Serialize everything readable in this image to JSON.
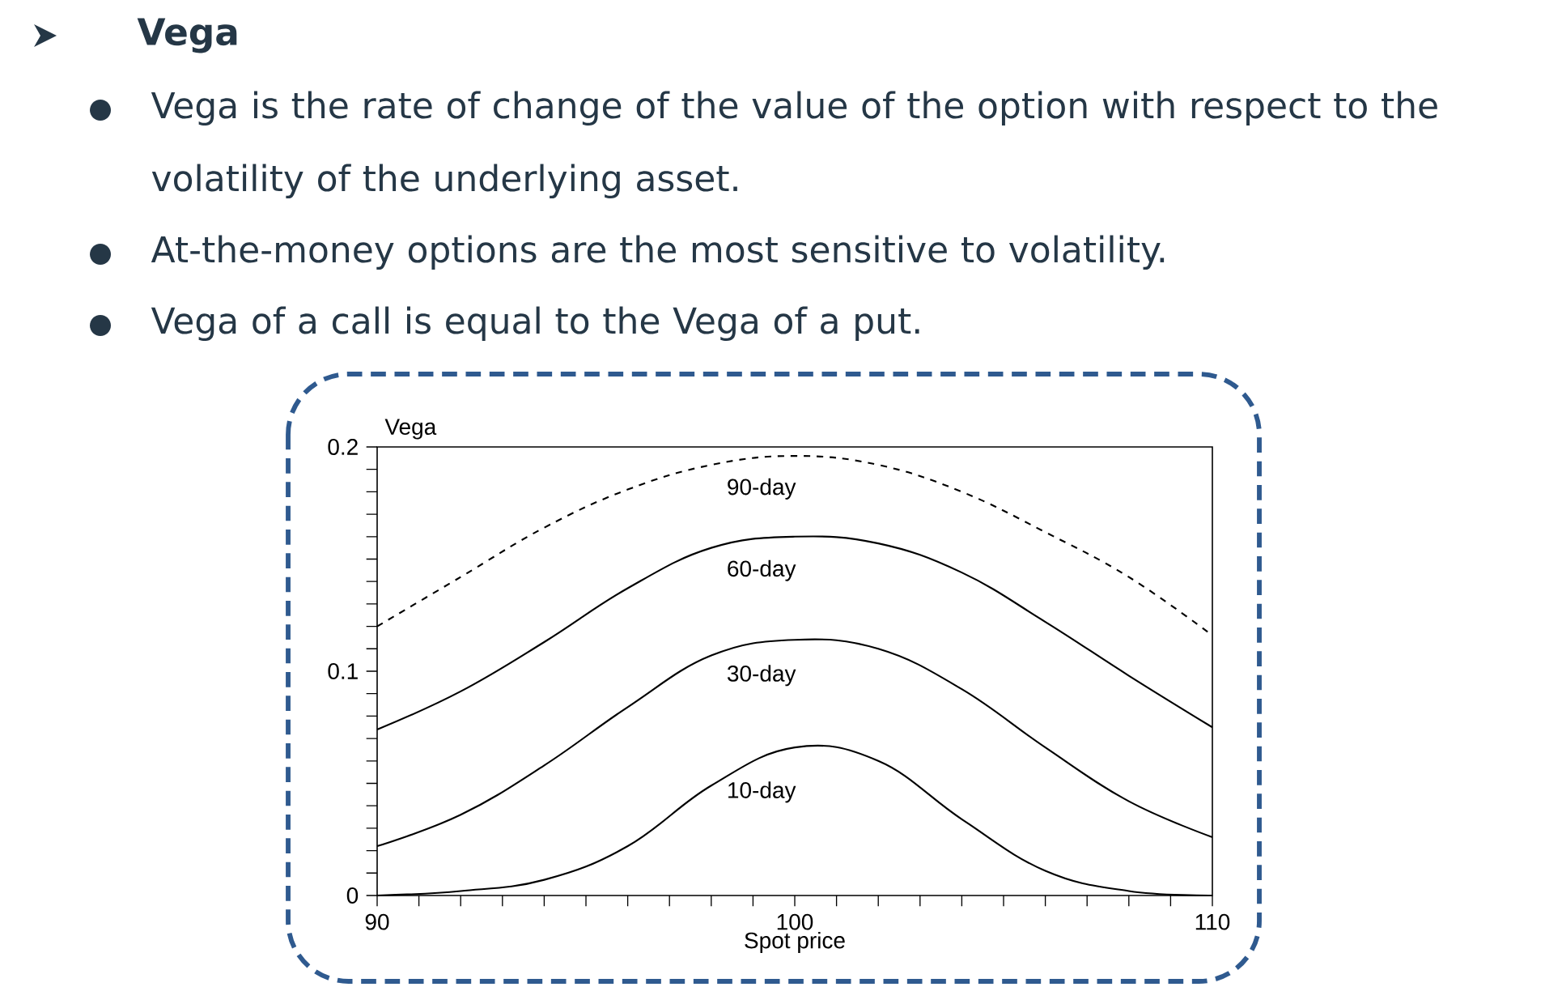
{
  "chart_data": {
    "type": "line",
    "title": "Vega",
    "annotations": [
      "Vega is the rate of change of the value of the option with respect to the volatility of the underlying asset.",
      "At-the-money options are the most sensitive to volatility.",
      "Vega of a call is equal to the Vega of a put."
    ],
    "xlabel": "Spot price",
    "ylabel": "Vega",
    "x": [
      90,
      92,
      94,
      96,
      98,
      100,
      102,
      104,
      106,
      108,
      110
    ],
    "series": [
      {
        "name": "90-day",
        "color": "#000000",
        "line_style": "dashed",
        "values": [
          0.12,
          0.142,
          0.164,
          0.181,
          0.192,
          0.196,
          0.192,
          0.18,
          0.162,
          0.142,
          0.116
        ]
      },
      {
        "name": "60-day",
        "color": "#000000",
        "line_style": "solid",
        "values": [
          0.074,
          0.091,
          0.113,
          0.137,
          0.155,
          0.16,
          0.157,
          0.144,
          0.122,
          0.098,
          0.075
        ]
      },
      {
        "name": "30-day",
        "color": "#000000",
        "line_style": "solid",
        "values": [
          0.022,
          0.036,
          0.058,
          0.084,
          0.107,
          0.114,
          0.11,
          0.092,
          0.066,
          0.042,
          0.026
        ]
      },
      {
        "name": "10-day",
        "color": "#000000",
        "line_style": "solid",
        "values": [
          0.0,
          0.002,
          0.007,
          0.022,
          0.049,
          0.066,
          0.06,
          0.034,
          0.011,
          0.002,
          0.0
        ]
      }
    ],
    "xlim": [
      90,
      110
    ],
    "xticks": [
      90,
      {
        "value": 91,
        "label": null
      },
      {
        "value": 92,
        "label": null
      },
      {
        "value": 93,
        "label": null
      },
      {
        "value": 94,
        "label": null
      },
      {
        "value": 95,
        "label": null
      },
      {
        "value": 96,
        "label": null
      },
      {
        "value": 97,
        "label": null
      },
      {
        "value": 98,
        "label": null
      },
      {
        "value": 99,
        "label": null
      },
      100,
      {
        "value": 101,
        "label": null
      },
      {
        "value": 102,
        "label": null
      },
      {
        "value": 103,
        "label": null
      },
      {
        "value": 104,
        "label": null
      },
      {
        "value": 105,
        "label": null
      },
      {
        "value": 106,
        "label": null
      },
      {
        "value": 107,
        "label": null
      },
      {
        "value": 108,
        "label": null
      },
      {
        "value": 109,
        "label": null
      },
      110
    ],
    "ylim": [
      0,
      0.2
    ],
    "yticks": [
      0,
      {
        "value": 0.01,
        "label": null
      },
      {
        "value": 0.02,
        "label": null
      },
      {
        "value": 0.03,
        "label": null
      },
      {
        "value": 0.04,
        "label": null
      },
      {
        "value": 0.05,
        "label": null
      },
      {
        "value": 0.06,
        "label": null
      },
      {
        "value": 0.07,
        "label": null
      },
      {
        "value": 0.08,
        "label": null
      },
      {
        "value": 0.09,
        "label": null
      },
      0.1,
      {
        "value": 0.11,
        "label": null
      },
      {
        "value": 0.12,
        "label": null
      },
      {
        "value": 0.13,
        "label": null
      },
      {
        "value": 0.14,
        "label": null
      },
      {
        "value": 0.15,
        "label": null
      },
      {
        "value": 0.16,
        "label": null
      },
      {
        "value": 0.17,
        "label": null
      },
      {
        "value": 0.18,
        "label": null
      },
      {
        "value": 0.19,
        "label": null
      },
      0.2
    ],
    "grid": false,
    "legend": false,
    "marker": "none"
  }
}
